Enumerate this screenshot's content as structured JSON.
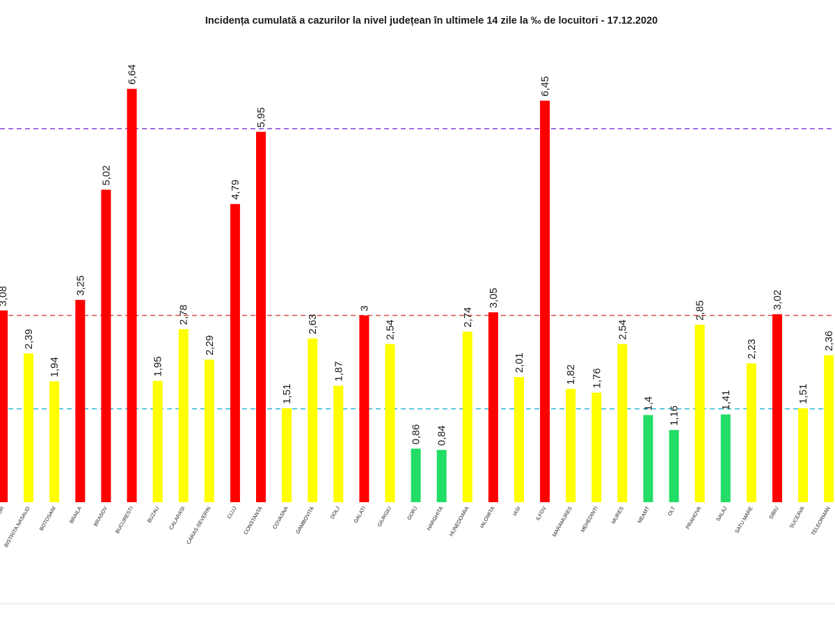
{
  "chart_data": {
    "type": "bar",
    "title": "Incidența cumulată a cazurilor la nivel județean în ultimele 14 zile la ‰ de locuitori - 17.12.2020",
    "ylim": [
      0,
      7.2
    ],
    "grid": false,
    "colors": {
      "red": "#ff0000",
      "yellow": "#ffff00",
      "green": "#22dd66"
    },
    "reference_lines": [
      {
        "value": 6.0,
        "color": "#7b3fd1"
      },
      {
        "value": 3.0,
        "color": "#d84a4a"
      },
      {
        "value": 1.5,
        "color": "#2eb8d6"
      }
    ],
    "categories": [
      "BIHOR",
      "BISTRITA NASAUD",
      "BOTOSANI",
      "BRAILA",
      "BRASOV",
      "BUCURESTI",
      "BUZAU",
      "CALARASI",
      "CARAS-SEVERIN",
      "CLUJ",
      "CONSTANTA",
      "COVASNA",
      "DAMBOVITA",
      "DOLJ",
      "GALATI",
      "GIURGIU",
      "GORJ",
      "HARGHITA",
      "HUNEDOARA",
      "IALOMITA",
      "IASI",
      "ILFOV",
      "MARAMURES",
      "MEHEDINTI",
      "MURES",
      "NEAMT",
      "OLT",
      "PRAHOVA",
      "SALAJ",
      "SATU MARE",
      "SIBIU",
      "SUCEAVA",
      "TELEORMAN"
    ],
    "values": [
      3.08,
      2.39,
      1.94,
      3.25,
      5.02,
      6.64,
      1.95,
      2.78,
      2.29,
      4.79,
      5.95,
      1.51,
      2.63,
      1.87,
      3,
      2.54,
      0.86,
      0.84,
      2.74,
      3.05,
      2.01,
      6.45,
      1.82,
      1.76,
      2.54,
      1.4,
      1.16,
      2.85,
      1.41,
      2.23,
      3.02,
      1.51,
      2.36
    ],
    "value_labels": [
      "3,08",
      "2,39",
      "1,94",
      "3,25",
      "5,02",
      "6,64",
      "1,95",
      "2,78",
      "2,29",
      "4,79",
      "5,95",
      "1,51",
      "2,63",
      "1,87",
      "3",
      "2,54",
      "0,86",
      "0,84",
      "2,74",
      "3,05",
      "2,01",
      "6,45",
      "1,82",
      "1,76",
      "2,54",
      "1,4",
      "1,16",
      "2,85",
      "1,41",
      "2,23",
      "3,02",
      "1,51",
      "2,36"
    ],
    "bar_colors": [
      "red",
      "yellow",
      "yellow",
      "red",
      "red",
      "red",
      "yellow",
      "yellow",
      "yellow",
      "red",
      "red",
      "yellow",
      "yellow",
      "yellow",
      "red",
      "yellow",
      "green",
      "green",
      "yellow",
      "red",
      "yellow",
      "red",
      "yellow",
      "yellow",
      "yellow",
      "green",
      "green",
      "yellow",
      "green",
      "yellow",
      "red",
      "yellow",
      "yellow"
    ]
  }
}
